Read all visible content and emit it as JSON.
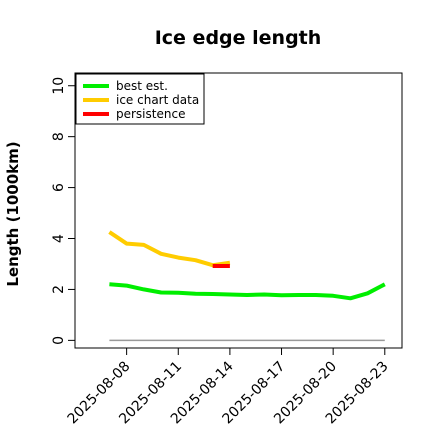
{
  "chart_data": {
    "type": "line",
    "title": "Ice edge length",
    "xlabel": "",
    "ylabel": "Length (1000km)",
    "ylim": [
      -0.3,
      10.5
    ],
    "yticks": [
      0,
      2,
      4,
      6,
      8,
      10
    ],
    "xlim": [
      "2025-08-05",
      "2025-08-24"
    ],
    "xticks": [
      "2025-08-08",
      "2025-08-11",
      "2025-08-14",
      "2025-08-17",
      "2025-08-20",
      "2025-08-23"
    ],
    "grid": false,
    "legend": "top-left",
    "series": [
      {
        "name": "best est.",
        "color": "#00ee00",
        "x": [
          "2025-08-07",
          "2025-08-08",
          "2025-08-09",
          "2025-08-10",
          "2025-08-11",
          "2025-08-12",
          "2025-08-13",
          "2025-08-14",
          "2025-08-15",
          "2025-08-16",
          "2025-08-17",
          "2025-08-18",
          "2025-08-19",
          "2025-08-20",
          "2025-08-21",
          "2025-08-22",
          "2025-08-23"
        ],
        "values": [
          2.2,
          2.15,
          2.0,
          1.88,
          1.87,
          1.83,
          1.82,
          1.8,
          1.78,
          1.8,
          1.77,
          1.78,
          1.78,
          1.75,
          1.65,
          1.85,
          2.2
        ]
      },
      {
        "name": "ice chart data",
        "color": "#ffcc00",
        "x": [
          "2025-08-07",
          "2025-08-08",
          "2025-08-09",
          "2025-08-10",
          "2025-08-11",
          "2025-08-12",
          "2025-08-13",
          "2025-08-14"
        ],
        "values": [
          4.25,
          3.8,
          3.75,
          3.4,
          3.25,
          3.15,
          2.95,
          3.05
        ]
      },
      {
        "name": "persistence",
        "color": "#ff0000",
        "x": [
          "2025-08-13",
          "2025-08-14"
        ],
        "values": [
          2.92,
          2.92
        ]
      },
      {
        "name": "",
        "color": "#999999",
        "x": [
          "2025-08-07",
          "2025-08-23"
        ],
        "values": [
          0,
          0
        ]
      }
    ]
  }
}
